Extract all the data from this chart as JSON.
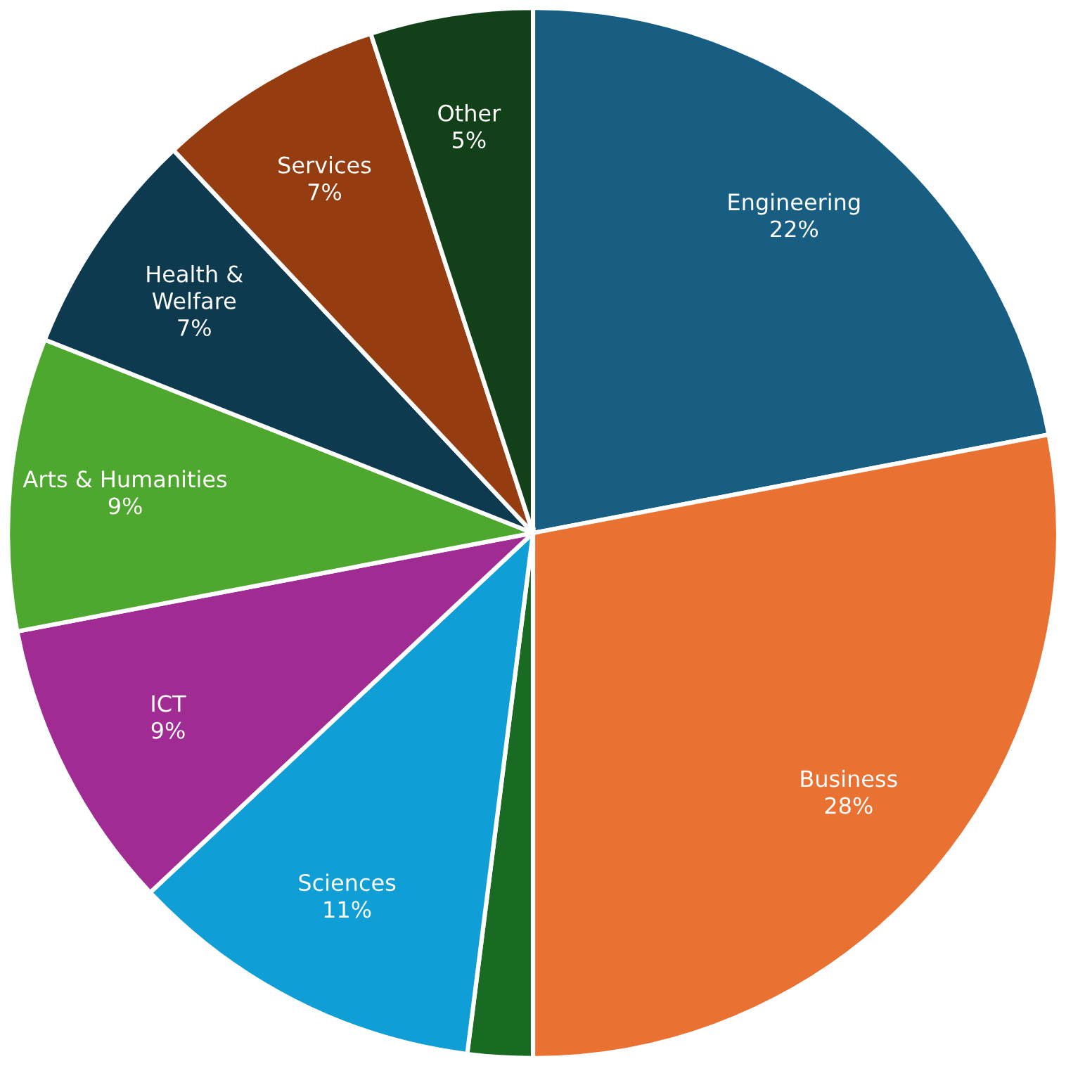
{
  "chart_data": {
    "type": "pie",
    "categories": [
      "Engineering",
      "Business",
      null,
      "Sciences",
      "ICT",
      "Arts & Humanities",
      "Health &\nWelfare",
      "Services",
      "Other"
    ],
    "values": [
      22,
      28,
      2,
      11,
      9,
      9,
      7,
      7,
      5
    ],
    "value_labels": [
      "22%",
      "28%",
      null,
      "11%",
      "9%",
      "9%",
      "7%",
      "7%",
      "5%"
    ],
    "colors": [
      "#185e82",
      "#e97132",
      "#196b24",
      "#0f9ed5",
      "#a02b93",
      "#4ea72e",
      "#0e3a50",
      "#953d10",
      "#124019"
    ]
  }
}
